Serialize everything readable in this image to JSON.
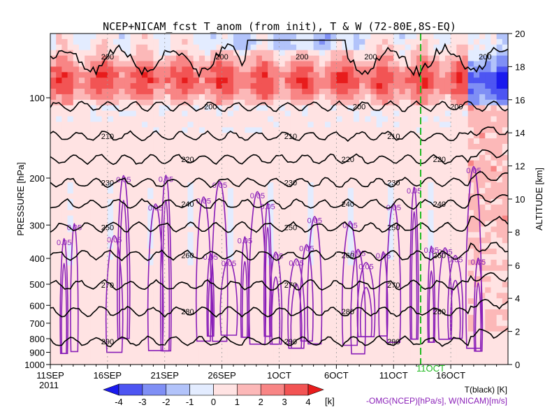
{
  "chart_data": {
    "type": "heatmap",
    "title": "NCEP+NICAM_fcst T_anom (from init), T & W  (72-80E,8S-EQ)",
    "ylabel_left": "PRESSURE [hPa]",
    "ylabel_right": "ALTITUDE [km]",
    "year_label": "2011",
    "x_ticks": [
      "11SEP",
      "16SEP",
      "21SEP",
      "26SEP",
      "1OCT",
      "6OCT",
      "11OCT",
      "16OCT"
    ],
    "y_ticks_left": [
      "100",
      "200",
      "300",
      "400",
      "500",
      "600",
      "700",
      "800",
      "900",
      "1000"
    ],
    "y_ticks_right": [
      "0",
      "2",
      "4",
      "6",
      "8",
      "10",
      "12",
      "14",
      "16",
      "18",
      "20"
    ],
    "pressure_range": [
      1000,
      60
    ],
    "altitude_range": [
      0,
      20
    ],
    "date_range": [
      "2011-09-11",
      "2011-10-21"
    ],
    "forecast_start_label": "11OCT",
    "colorbar": {
      "ticks": [
        "-4",
        "-3",
        "-2",
        "-1",
        "0",
        "1",
        "2",
        "3",
        "4"
      ],
      "unit": "[k]",
      "colors": [
        "#1a1aee",
        "#4d55f2",
        "#7f8ff5",
        "#b2c3fa",
        "#e3ecff",
        "#ffe3e3",
        "#fcb8b8",
        "#f88585",
        "#f25454",
        "#e81c1c"
      ]
    },
    "legend_T": "T(black) [K]",
    "legend_W": "-OMG(NCEP)[hPa/s], W(NICAM)[m/s]",
    "temperature_contours": [
      {
        "level": "200",
        "label": "200"
      },
      {
        "level": "210",
        "label": "210"
      },
      {
        "level": "220",
        "label": "220"
      },
      {
        "level": "230",
        "label": "230"
      },
      {
        "level": "240",
        "label": "240"
      },
      {
        "level": "250",
        "label": "250"
      },
      {
        "level": "260",
        "label": "260"
      },
      {
        "level": "270",
        "label": "270"
      },
      {
        "level": "280",
        "label": "280"
      },
      {
        "level": "290",
        "label": "290"
      }
    ],
    "w_contour_label": "0.05"
  },
  "colors": {
    "temp_contour": "#000000",
    "w_contour": "#8a1fb8",
    "forecast_line": "#22bb22",
    "legend_W": "#8a1fb8"
  }
}
